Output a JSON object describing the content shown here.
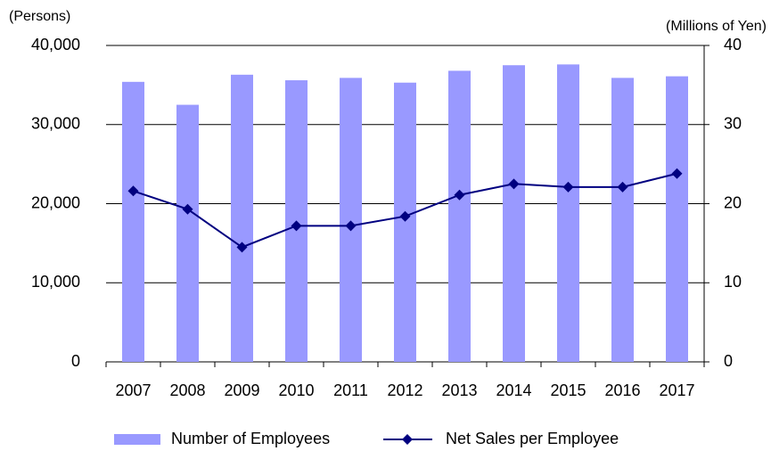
{
  "chart_data": {
    "type": "bar",
    "y_label": "(Persons)",
    "y2_label": "(Millions of Yen)",
    "categories": [
      "2007",
      "2008",
      "2009",
      "2010",
      "2011",
      "2012",
      "2013",
      "2014",
      "2015",
      "2016",
      "2017"
    ],
    "series": [
      {
        "name": "Number of Employees",
        "type": "bar",
        "color": "#9999ff",
        "values": [
          35400,
          32500,
          36300,
          35600,
          35900,
          35300,
          36800,
          37500,
          37600,
          35900,
          36100
        ]
      },
      {
        "name": "Net Sales per Employee",
        "type": "line",
        "axis": "y2",
        "color": "#000080",
        "values": [
          21.6,
          19.3,
          14.5,
          17.2,
          17.2,
          18.4,
          21.1,
          22.5,
          22.1,
          22.1,
          23.8
        ]
      }
    ],
    "ylim": [
      0,
      40000
    ],
    "yticks": [
      0,
      {
        "value": 10000,
        "label": "10,000"
      },
      {
        "value": 20000,
        "label": "20,000"
      },
      {
        "value": 30000,
        "label": "30,000"
      },
      {
        "value": 40000,
        "label": "40,000"
      }
    ],
    "y2lim": [
      0,
      40
    ],
    "y2ticks": [
      0,
      10,
      20,
      30,
      40
    ],
    "grid": true,
    "legend": "bottom"
  }
}
